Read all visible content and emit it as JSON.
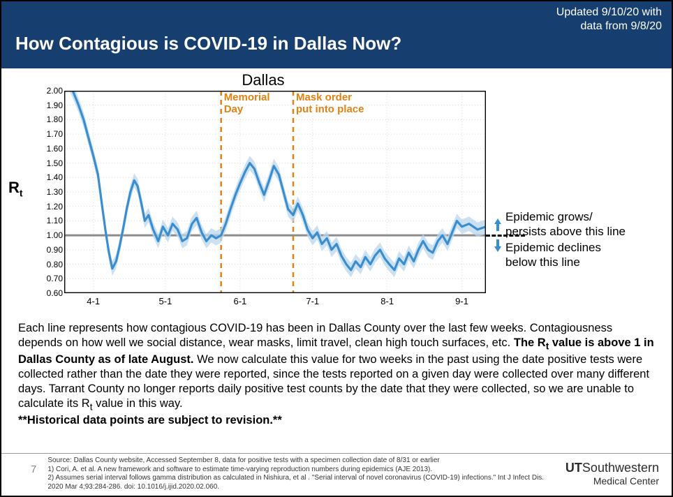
{
  "header": {
    "title": "How Contagious is COVID-19 in Dallas Now?",
    "update_line1": "Updated 9/10/20 with",
    "update_line2": "data from 9/8/20",
    "bg_color": "#163e6e",
    "text_color": "#ffffff"
  },
  "chart": {
    "title": "Dallas",
    "y_axis_label_main": "R",
    "y_axis_label_sub": "t",
    "ylim": [
      0.6,
      2.0
    ],
    "y_ticks": [
      0.6,
      0.7,
      0.8,
      0.9,
      1.0,
      1.1,
      1.2,
      1.3,
      1.4,
      1.5,
      1.6,
      1.7,
      1.8,
      1.9,
      2.0
    ],
    "x_dates": [
      "3-20",
      "4-1",
      "5-1",
      "6-1",
      "7-1",
      "8-1",
      "9-1",
      "9-8"
    ],
    "x_positions": [
      0,
      0.069,
      0.24,
      0.417,
      0.589,
      0.766,
      0.943,
      1.0
    ],
    "x_tick_labels": [
      "4-1",
      "5-1",
      "6-1",
      "7-1",
      "8-1",
      "9-1"
    ],
    "x_tick_positions": [
      0.069,
      0.24,
      0.417,
      0.589,
      0.766,
      0.943
    ],
    "reference_line": 1.0,
    "reference_color": "#8c8c8c",
    "grid_color": "#d9d9d9",
    "annotations": [
      {
        "label_l1": "Memorial",
        "label_l2": "Day",
        "x": 0.372,
        "color": "#e08214"
      },
      {
        "label_l1": "Mask order",
        "label_l2": "put into place",
        "x": 0.543,
        "color": "#e08214"
      }
    ],
    "right_notes": {
      "grow": "Epidemic grows/\npersists above this line",
      "decline": "Epidemic declines\nbelow this line",
      "arrow_color": "#3a8ecf"
    },
    "series": {
      "line_color": "#3a8ecf",
      "band_color": "#b9d7ee",
      "line_width": 3.2,
      "rt": [
        [
          0.0,
          2.15
        ],
        [
          0.012,
          2.05
        ],
        [
          0.023,
          1.98
        ],
        [
          0.034,
          1.9
        ],
        [
          0.046,
          1.8
        ],
        [
          0.057,
          1.68
        ],
        [
          0.069,
          1.55
        ],
        [
          0.08,
          1.42
        ],
        [
          0.09,
          1.2
        ],
        [
          0.098,
          1.03
        ],
        [
          0.106,
          0.88
        ],
        [
          0.114,
          0.77
        ],
        [
          0.123,
          0.82
        ],
        [
          0.131,
          0.92
        ],
        [
          0.14,
          1.05
        ],
        [
          0.148,
          1.18
        ],
        [
          0.157,
          1.3
        ],
        [
          0.166,
          1.38
        ],
        [
          0.174,
          1.34
        ],
        [
          0.183,
          1.22
        ],
        [
          0.191,
          1.1
        ],
        [
          0.2,
          1.14
        ],
        [
          0.211,
          1.04
        ],
        [
          0.223,
          0.96
        ],
        [
          0.234,
          1.06
        ],
        [
          0.246,
          1.0
        ],
        [
          0.257,
          1.08
        ],
        [
          0.269,
          1.04
        ],
        [
          0.28,
          0.96
        ],
        [
          0.291,
          0.98
        ],
        [
          0.303,
          1.08
        ],
        [
          0.314,
          1.12
        ],
        [
          0.326,
          1.02
        ],
        [
          0.337,
          0.96
        ],
        [
          0.349,
          1.0
        ],
        [
          0.36,
          0.98
        ],
        [
          0.372,
          1.0
        ],
        [
          0.383,
          1.08
        ],
        [
          0.394,
          1.18
        ],
        [
          0.406,
          1.28
        ],
        [
          0.417,
          1.36
        ],
        [
          0.429,
          1.44
        ],
        [
          0.44,
          1.5
        ],
        [
          0.451,
          1.46
        ],
        [
          0.463,
          1.36
        ],
        [
          0.474,
          1.28
        ],
        [
          0.486,
          1.38
        ],
        [
          0.497,
          1.48
        ],
        [
          0.509,
          1.42
        ],
        [
          0.52,
          1.3
        ],
        [
          0.531,
          1.18
        ],
        [
          0.543,
          1.14
        ],
        [
          0.554,
          1.22
        ],
        [
          0.566,
          1.14
        ],
        [
          0.577,
          1.04
        ],
        [
          0.589,
          0.98
        ],
        [
          0.6,
          1.02
        ],
        [
          0.611,
          0.94
        ],
        [
          0.623,
          0.98
        ],
        [
          0.634,
          0.9
        ],
        [
          0.646,
          0.94
        ],
        [
          0.657,
          0.86
        ],
        [
          0.669,
          0.8
        ],
        [
          0.68,
          0.76
        ],
        [
          0.691,
          0.82
        ],
        [
          0.703,
          0.78
        ],
        [
          0.714,
          0.85
        ],
        [
          0.726,
          0.8
        ],
        [
          0.737,
          0.86
        ],
        [
          0.749,
          0.9
        ],
        [
          0.76,
          0.84
        ],
        [
          0.771,
          0.8
        ],
        [
          0.783,
          0.76
        ],
        [
          0.794,
          0.84
        ],
        [
          0.806,
          0.8
        ],
        [
          0.817,
          0.88
        ],
        [
          0.829,
          0.82
        ],
        [
          0.84,
          0.9
        ],
        [
          0.851,
          0.96
        ],
        [
          0.863,
          0.9
        ],
        [
          0.874,
          0.88
        ],
        [
          0.886,
          0.96
        ],
        [
          0.897,
          1.0
        ],
        [
          0.909,
          0.94
        ],
        [
          0.92,
          1.02
        ],
        [
          0.931,
          1.1
        ],
        [
          0.943,
          1.06
        ],
        [
          0.96,
          1.08
        ],
        [
          0.98,
          1.04
        ],
        [
          1.0,
          1.06
        ]
      ],
      "band_delta": 0.05
    }
  },
  "description": {
    "p1": "Each line represents how contagious COVID-19 has been in Dallas County over the last few weeks. Contagiousness depends on how well we social distance, wear masks, limit travel, clean high touch surfaces, etc.",
    "bold1_a": "The R",
    "bold1_sub": "t",
    "bold1_b": " value is above 1 in Dallas County as of late August.",
    "p2": " We now calculate this value for two weeks in the past using the date positive tests were collected rather than the date they were reported, since the tests reported on a given day were collected over many different days. Tarrant County no longer reports daily positive test counts by the date that they were collected, so we are unable to calculate its R",
    "p2_sub": "t",
    "p2_end": " value in this way.",
    "bold2": "**Historical data points are subject to revision.**"
  },
  "footer": {
    "page_number": "7",
    "source_lines": [
      "Source: Dallas County website, Accessed September 8, data for positive tests with a specimen collection date of 8/31 or earlier",
      "1) Cori, A. et al. A new framework and software to estimate time-varying reproduction numbers during epidemics (AJE 2013).",
      "2) Assumes serial interval follows gamma distribution as calculated in Nishiura, et al . \"Serial interval of novel coronavirus (COVID-19) infections.\" Int J Infect Dis. 2020 Mar 4;93:284-286. doi: 10.1016/j.ijid.2020.02.060."
    ],
    "logo_ut": "UT",
    "logo_sw": "Southwestern",
    "logo_line2": "Medical Center"
  }
}
